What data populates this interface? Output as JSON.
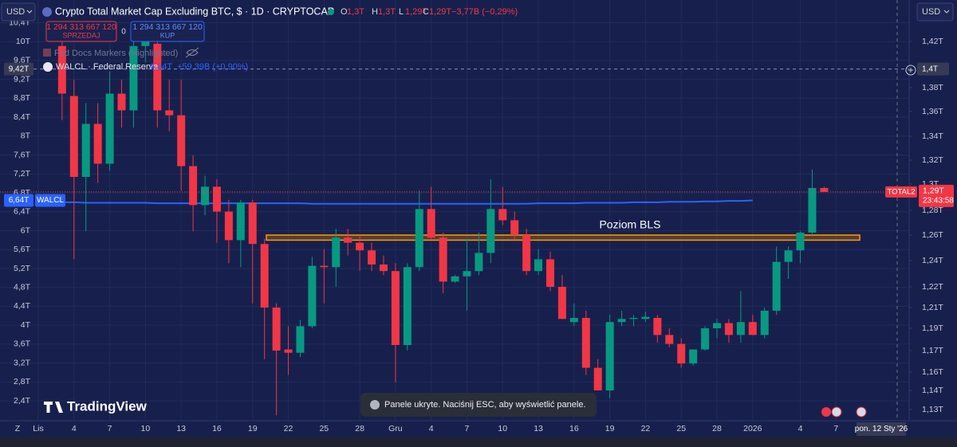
{
  "toolbar": {
    "currency_left": "USD",
    "currency_right": "USD"
  },
  "trade": {
    "sell_price": "1 294 313 667 120",
    "sell": "SPRZEDAJ",
    "spread": "0",
    "buy_price": "1 294 313 667 120",
    "buy": "KUP"
  },
  "indicators": {
    "fed_docs": "Fed Docs Markers (Highlighted)",
    "walcl_title": "WALCL · Federal Reserve",
    "walcl_change": "+59,39B (+0,90%)"
  },
  "branding": "TradingView",
  "toast": "Panele ukryte. Naciśnij ESC, aby wyświetlić panele.",
  "bottom": {
    "z": "Z",
    "date": "pon. 12 Sty '26"
  },
  "chart_data": {
    "type": "candlestick",
    "title": "Crypto Total Market Cap Excluding BTC, $ · 1D · CRYPTOCAP",
    "ohlc": [
      {
        "key": "O",
        "value": "1,3T"
      },
      {
        "key": "H",
        "value": "1,3T"
      },
      {
        "key": "L",
        "value": "1,29T"
      },
      {
        "key": "C",
        "value": "1,29T"
      }
    ],
    "change": "−3,77B (−0,29%)",
    "up_color": "#089981",
    "down_color": "#f23645",
    "grid": true,
    "categories": [
      "Lis",
      null,
      null,
      "4",
      null,
      null,
      "7",
      null,
      null,
      "10",
      null,
      null,
      "13",
      null,
      null,
      "16",
      null,
      null,
      "19",
      null,
      null,
      "22",
      null,
      null,
      "25",
      null,
      null,
      "28",
      null,
      null,
      "Gru",
      null,
      null,
      "4",
      null,
      null,
      "7",
      null,
      null,
      "10",
      null,
      null,
      "13",
      null,
      null,
      "16",
      null,
      null,
      "19",
      null,
      null,
      "22",
      null,
      null,
      "25",
      null,
      null,
      "28",
      null,
      null,
      "2026",
      null,
      null,
      null,
      "4",
      null,
      null,
      "7"
    ],
    "open": [
      null,
      null,
      1.416,
      1.373,
      1.306,
      1.35,
      1.317,
      1.375,
      1.361,
      1.416,
      1.418,
      1.361,
      1.357,
      1.315,
      1.284,
      1.298,
      1.279,
      1.256,
      1.286,
      1.253,
      1.21,
      1.171,
      1.169,
      1.192,
      1.236,
      1.235,
      1.258,
      1.254,
      1.248,
      1.237,
      1.232,
      1.175,
      1.235,
      1.281,
      1.258,
      1.224,
      1.228,
      1.232,
      1.246,
      1.281,
      1.272,
      1.26,
      1.232,
      1.241,
      1.22,
      1.196,
      1.2,
      1.162,
      1.14,
      1.196,
      1.199,
      1.199,
      1.2,
      1.184,
      1.176,
      1.164,
      1.171,
      1.19,
      1.195,
      1.184,
      1.196,
      1.184,
      1.207,
      1.239,
      1.248,
      1.262,
      1.297,
      null
    ],
    "high": [
      null,
      null,
      1.427,
      1.387,
      1.367,
      1.367,
      1.394,
      1.387,
      1.424,
      1.43,
      1.427,
      1.387,
      1.387,
      1.324,
      1.307,
      1.304,
      1.288,
      1.288,
      1.288,
      1.257,
      1.212,
      1.192,
      1.198,
      1.243,
      1.249,
      1.265,
      1.265,
      1.26,
      1.254,
      1.244,
      1.238,
      1.238,
      1.295,
      1.298,
      1.262,
      1.229,
      1.257,
      1.262,
      1.304,
      1.298,
      1.279,
      1.265,
      1.249,
      1.247,
      1.229,
      1.212,
      1.207,
      1.166,
      1.203,
      1.207,
      1.203,
      1.206,
      1.203,
      1.19,
      1.181,
      1.17,
      1.192,
      1.199,
      1.199,
      1.218,
      1.203,
      1.21,
      1.251,
      1.251,
      1.263,
      1.312,
      1.298,
      null
    ],
    "low": [
      null,
      null,
      1.353,
      1.241,
      1.263,
      1.301,
      1.311,
      1.347,
      1.347,
      1.402,
      1.347,
      1.344,
      1.295,
      1.263,
      1.276,
      1.254,
      1.238,
      1.235,
      1.212,
      1.166,
      1.127,
      1.157,
      1.167,
      1.19,
      1.212,
      1.22,
      1.244,
      1.232,
      1.232,
      1.229,
      1.149,
      1.17,
      1.232,
      1.257,
      1.217,
      1.223,
      1.207,
      1.229,
      1.238,
      1.268,
      1.256,
      1.229,
      1.229,
      1.218,
      1.199,
      1.192,
      1.157,
      1.14,
      1.136,
      1.192,
      1.192,
      1.196,
      1.177,
      1.173,
      1.162,
      1.163,
      1.17,
      1.181,
      1.177,
      1.177,
      1.184,
      1.181,
      1.203,
      1.226,
      1.238,
      1.26,
      1.294,
      null
    ],
    "close": [
      null,
      null,
      1.375,
      1.306,
      1.35,
      1.317,
      1.375,
      1.361,
      1.416,
      1.424,
      1.361,
      1.357,
      1.315,
      1.284,
      1.298,
      1.279,
      1.256,
      1.286,
      1.253,
      1.21,
      1.17,
      1.169,
      1.192,
      1.236,
      1.235,
      1.258,
      1.254,
      1.248,
      1.237,
      1.232,
      1.175,
      1.235,
      1.281,
      1.258,
      1.224,
      1.228,
      1.232,
      1.246,
      1.281,
      1.272,
      1.26,
      1.232,
      1.241,
      1.22,
      1.199,
      1.2,
      1.162,
      1.14,
      1.196,
      1.199,
      1.2,
      1.201,
      1.184,
      1.176,
      1.164,
      1.171,
      1.19,
      1.195,
      1.184,
      1.196,
      1.184,
      1.207,
      1.239,
      1.248,
      1.262,
      1.297,
      1.294,
      null
    ],
    "ylim": [
      1.98,
      10.88
    ],
    "yticks": [
      {
        "value": 10.4,
        "label": "10,4T"
      },
      {
        "value": 10,
        "label": "10T"
      },
      {
        "value": 9.6,
        "label": "9,6T"
      },
      {
        "value": 9.2,
        "label": "9,2T"
      },
      {
        "value": 8.8,
        "label": "8,8T"
      },
      {
        "value": 8.4,
        "label": "8,4T"
      },
      {
        "value": 8,
        "label": "8T"
      },
      {
        "value": 7.6,
        "label": "7,6T"
      },
      {
        "value": 7.2,
        "label": "7,2T"
      },
      {
        "value": 6.8,
        "label": "6,8T"
      },
      {
        "value": 6.4,
        "label": "6,4T"
      },
      {
        "value": 6,
        "label": "6T"
      },
      {
        "value": 5.6,
        "label": "5,6T"
      },
      {
        "value": 5.2,
        "label": "5,2T"
      },
      {
        "value": 4.8,
        "label": "4,8T"
      },
      {
        "value": 4.4,
        "label": "4,4T"
      },
      {
        "value": 4,
        "label": "4T"
      },
      {
        "value": 3.6,
        "label": "3,6T"
      },
      {
        "value": 3.2,
        "label": "3,2T"
      },
      {
        "value": 2.8,
        "label": "2,8T"
      },
      {
        "value": 2.4,
        "label": "2,4T"
      }
    ],
    "y2ticks": [
      {
        "value": 1.42,
        "label": "1,42T"
      },
      {
        "value": 1.38,
        "label": "1,38T"
      },
      {
        "value": 1.36,
        "label": "1,36T"
      },
      {
        "value": 1.34,
        "label": "1,34T"
      },
      {
        "value": 1.32,
        "label": "1,32T"
      },
      {
        "value": 1.3,
        "label": "1,3T"
      },
      {
        "value": 1.28,
        "label": "1,28T"
      },
      {
        "value": 1.26,
        "label": "1,26T"
      },
      {
        "value": 1.24,
        "label": "1,24T"
      },
      {
        "value": 1.22,
        "label": "1,22T"
      },
      {
        "value": 1.21,
        "label": "1,21T"
      },
      {
        "value": 1.19,
        "label": "1,19T"
      },
      {
        "value": 1.17,
        "label": "1,17T"
      },
      {
        "value": 1.16,
        "label": "1,16T"
      },
      {
        "value": 1.14,
        "label": "1,14T"
      },
      {
        "value": 1.13,
        "label": "1,13T"
      }
    ],
    "series": [
      {
        "name": "WALCL",
        "color": "#2962ff",
        "axis": "y",
        "last_label": "6,64T",
        "values": [
          6.6,
          6.6,
          6.6,
          6.6,
          6.59,
          6.59,
          6.59,
          6.59,
          6.59,
          6.59,
          6.58,
          6.58,
          6.58,
          6.58,
          6.58,
          6.58,
          6.58,
          6.58,
          6.58,
          6.58,
          6.58,
          6.58,
          6.58,
          6.57,
          6.57,
          6.57,
          6.57,
          6.57,
          6.57,
          6.57,
          6.57,
          6.57,
          6.57,
          6.57,
          6.57,
          6.57,
          6.57,
          6.57,
          6.57,
          6.57,
          6.57,
          6.57,
          6.58,
          6.58,
          6.58,
          6.58,
          6.59,
          6.59,
          6.59,
          6.59,
          6.6,
          6.6,
          6.6,
          6.61,
          6.61,
          6.61,
          6.62,
          6.62,
          6.63,
          6.63,
          6.64,
          null,
          null,
          null,
          null,
          null,
          null,
          null
        ]
      }
    ],
    "last_price": {
      "name": "TOTAL2",
      "label": "1,29T",
      "countdown": "23:43:58"
    },
    "crosshair": {
      "left": {
        "value": 9.42,
        "label": "9,42T"
      },
      "right": {
        "value": 1.4,
        "label": "1,4T"
      }
    },
    "annotation": {
      "text": "Poziom BLS",
      "value_range": [
        1.256,
        1.26
      ]
    }
  }
}
